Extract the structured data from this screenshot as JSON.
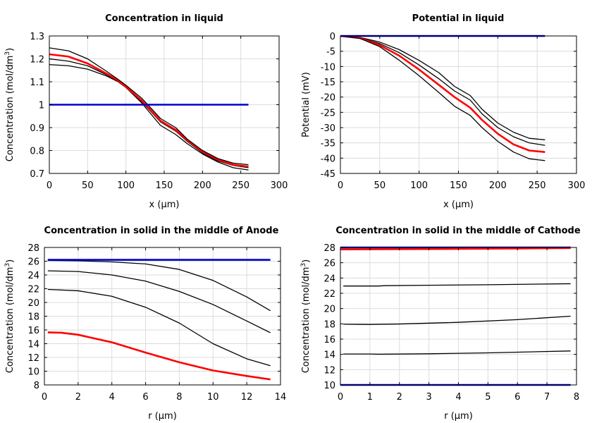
{
  "chart_data": [
    {
      "type": "line",
      "title": "Concentration in liquid",
      "xlabel": "x (µm)",
      "ylabel_main": "Concentration (mol/dm",
      "ylabel_sup": "3",
      "ylabel_tail": ")",
      "xlim": [
        0,
        300
      ],
      "ylim": [
        0.7,
        1.3
      ],
      "xticks": [
        0,
        50,
        100,
        150,
        200,
        250,
        300
      ],
      "yticks": [
        0.7,
        0.8,
        0.9,
        1,
        1.1,
        1.2,
        1.3
      ],
      "ytick_labels": [
        "0.7",
        "0.8",
        "0.9",
        "1",
        "1.1",
        "1.2",
        "1.3"
      ],
      "series": [
        {
          "color": "#000000",
          "width": 1.3,
          "points": [
            [
              0,
              1.175
            ],
            [
              25,
              1.17
            ],
            [
              50,
              1.155
            ],
            [
              75,
              1.125
            ],
            [
              90,
              1.1
            ],
            [
              100,
              1.075
            ],
            [
              120,
              1.01
            ],
            [
              130,
              0.97
            ],
            [
              145,
              0.91
            ],
            [
              165,
              0.87
            ],
            [
              180,
              0.83
            ],
            [
              200,
              0.785
            ],
            [
              220,
              0.75
            ],
            [
              240,
              0.725
            ],
            [
              260,
              0.715
            ]
          ]
        },
        {
          "color": "#000000",
          "width": 1.3,
          "points": [
            [
              0,
              1.2
            ],
            [
              25,
              1.19
            ],
            [
              50,
              1.17
            ],
            [
              75,
              1.13
            ],
            [
              90,
              1.1
            ],
            [
              100,
              1.075
            ],
            [
              120,
              1.015
            ],
            [
              130,
              0.98
            ],
            [
              145,
              0.925
            ],
            [
              165,
              0.885
            ],
            [
              180,
              0.84
            ],
            [
              200,
              0.79
            ],
            [
              220,
              0.755
            ],
            [
              240,
              0.735
            ],
            [
              260,
              0.725
            ]
          ]
        },
        {
          "color": "#ff0000",
          "width": 2.6,
          "points": [
            [
              0,
              1.22
            ],
            [
              25,
              1.21
            ],
            [
              50,
              1.18
            ],
            [
              75,
              1.135
            ],
            [
              90,
              1.105
            ],
            [
              100,
              1.078
            ],
            [
              120,
              1.02
            ],
            [
              130,
              0.985
            ],
            [
              145,
              0.93
            ],
            [
              165,
              0.89
            ],
            [
              180,
              0.845
            ],
            [
              200,
              0.795
            ],
            [
              220,
              0.76
            ],
            [
              240,
              0.738
            ],
            [
              260,
              0.73
            ]
          ]
        },
        {
          "color": "#000000",
          "width": 1.3,
          "points": [
            [
              0,
              1.248
            ],
            [
              25,
              1.235
            ],
            [
              50,
              1.2
            ],
            [
              75,
              1.145
            ],
            [
              90,
              1.11
            ],
            [
              100,
              1.085
            ],
            [
              120,
              1.03
            ],
            [
              130,
              0.995
            ],
            [
              145,
              0.94
            ],
            [
              165,
              0.9
            ],
            [
              180,
              0.85
            ],
            [
              200,
              0.8
            ],
            [
              220,
              0.765
            ],
            [
              240,
              0.745
            ],
            [
              260,
              0.738
            ]
          ]
        },
        {
          "color": "#0000cc",
          "width": 2.6,
          "points": [
            [
              0,
              1.0
            ],
            [
              260,
              1.0
            ]
          ]
        }
      ]
    },
    {
      "type": "line",
      "title": "Potential in liquid",
      "xlabel": "x (µm)",
      "ylabel_main": "Potential (mV)",
      "ylabel_sup": "",
      "ylabel_tail": "",
      "xlim": [
        0,
        300
      ],
      "ylim": [
        -45,
        0
      ],
      "xticks": [
        0,
        50,
        100,
        150,
        200,
        250,
        300
      ],
      "yticks": [
        0,
        -5,
        -10,
        -15,
        -20,
        -25,
        -30,
        -35,
        -40,
        -45
      ],
      "ytick_labels": [
        "0",
        "-5",
        "-10",
        "-15",
        "-20",
        "-25",
        "-30",
        "-35",
        "-40",
        "-45"
      ],
      "series": [
        {
          "color": "#000000",
          "width": 1.3,
          "points": [
            [
              0,
              0
            ],
            [
              25,
              -0.5
            ],
            [
              50,
              -2
            ],
            [
              75,
              -4.5
            ],
            [
              100,
              -8
            ],
            [
              125,
              -12
            ],
            [
              145,
              -16.5
            ],
            [
              165,
              -19.5
            ],
            [
              180,
              -24
            ],
            [
              200,
              -28.5
            ],
            [
              220,
              -31.5
            ],
            [
              240,
              -33.5
            ],
            [
              260,
              -34
            ]
          ]
        },
        {
          "color": "#000000",
          "width": 1.3,
          "points": [
            [
              0,
              0
            ],
            [
              25,
              -0.6
            ],
            [
              50,
              -2.5
            ],
            [
              75,
              -5.5
            ],
            [
              100,
              -9.5
            ],
            [
              125,
              -14
            ],
            [
              145,
              -18
            ],
            [
              165,
              -21
            ],
            [
              180,
              -25.5
            ],
            [
              200,
              -30
            ],
            [
              220,
              -33
            ],
            [
              240,
              -35
            ],
            [
              260,
              -35.8
            ]
          ]
        },
        {
          "color": "#ff0000",
          "width": 2.6,
          "points": [
            [
              0,
              0
            ],
            [
              25,
              -0.7
            ],
            [
              50,
              -3
            ],
            [
              75,
              -6.5
            ],
            [
              100,
              -11
            ],
            [
              125,
              -16
            ],
            [
              145,
              -20
            ],
            [
              165,
              -23.5
            ],
            [
              180,
              -27.5
            ],
            [
              200,
              -32
            ],
            [
              220,
              -35.5
            ],
            [
              240,
              -37.5
            ],
            [
              260,
              -38
            ]
          ]
        },
        {
          "color": "#000000",
          "width": 1.3,
          "points": [
            [
              0,
              0
            ],
            [
              25,
              -0.8
            ],
            [
              50,
              -3.5
            ],
            [
              75,
              -8
            ],
            [
              100,
              -13
            ],
            [
              125,
              -18.5
            ],
            [
              145,
              -23
            ],
            [
              165,
              -26
            ],
            [
              180,
              -30
            ],
            [
              200,
              -34.5
            ],
            [
              220,
              -38
            ],
            [
              240,
              -40.2
            ],
            [
              260,
              -40.8
            ]
          ]
        },
        {
          "color": "#0000cc",
          "width": 2.6,
          "points": [
            [
              0,
              0
            ],
            [
              260,
              0
            ]
          ]
        }
      ]
    },
    {
      "type": "line",
      "title": "Concentration in solid in the middle of Anode",
      "xlabel": "r (µm)",
      "ylabel_main": "Concentration (mol/dm",
      "ylabel_sup": "3",
      "ylabel_tail": ")",
      "xlim": [
        0,
        14
      ],
      "ylim": [
        8,
        28
      ],
      "xticks": [
        0,
        2,
        4,
        6,
        8,
        10,
        12,
        14
      ],
      "yticks": [
        8,
        10,
        12,
        14,
        16,
        18,
        20,
        22,
        24,
        26,
        28
      ],
      "ytick_labels": [
        "8",
        "10",
        "12",
        "14",
        "16",
        "18",
        "20",
        "22",
        "24",
        "26",
        "28"
      ],
      "series": [
        {
          "color": "#000000",
          "width": 1.3,
          "points": [
            [
              0.2,
              26.1
            ],
            [
              2,
              26.05
            ],
            [
              4,
              25.9
            ],
            [
              6,
              25.6
            ],
            [
              8,
              24.8
            ],
            [
              10,
              23.2
            ],
            [
              12,
              20.8
            ],
            [
              13.4,
              18.8
            ]
          ]
        },
        {
          "color": "#000000",
          "width": 1.3,
          "points": [
            [
              0.2,
              24.6
            ],
            [
              2,
              24.5
            ],
            [
              4,
              24
            ],
            [
              6,
              23.1
            ],
            [
              8,
              21.6
            ],
            [
              10,
              19.7
            ],
            [
              12,
              17.3
            ],
            [
              13.4,
              15.6
            ]
          ]
        },
        {
          "color": "#000000",
          "width": 1.3,
          "points": [
            [
              0.2,
              21.9
            ],
            [
              2,
              21.7
            ],
            [
              4,
              20.9
            ],
            [
              6,
              19.3
            ],
            [
              8,
              17
            ],
            [
              10,
              14
            ],
            [
              12,
              11.8
            ],
            [
              13.4,
              10.8
            ]
          ]
        },
        {
          "color": "#ff0000",
          "width": 2.6,
          "points": [
            [
              0.2,
              15.65
            ],
            [
              1,
              15.6
            ],
            [
              2,
              15.3
            ],
            [
              4,
              14.2
            ],
            [
              6,
              12.7
            ],
            [
              8,
              11.3
            ],
            [
              10,
              10.1
            ],
            [
              12,
              9.3
            ],
            [
              13.4,
              8.8
            ]
          ]
        },
        {
          "color": "#0000cc",
          "width": 2.6,
          "points": [
            [
              0.2,
              26.2
            ],
            [
              13.4,
              26.2
            ]
          ]
        }
      ]
    },
    {
      "type": "line",
      "title": "Concentration in solid in the middle of Cathode",
      "xlabel": "r (µm)",
      "ylabel_main": "Concentration (mol/dm",
      "ylabel_sup": "3",
      "ylabel_tail": ")",
      "xlim": [
        0,
        8
      ],
      "ylim": [
        10,
        28
      ],
      "xticks": [
        0,
        1,
        2,
        3,
        4,
        5,
        6,
        7,
        8
      ],
      "yticks": [
        10,
        12,
        14,
        16,
        18,
        20,
        22,
        24,
        26,
        28
      ],
      "ytick_labels": [
        "10",
        "12",
        "14",
        "16",
        "18",
        "20",
        "22",
        "24",
        "26",
        "28"
      ],
      "series": [
        {
          "color": "#0000cc",
          "width": 2.6,
          "points": [
            [
              0,
              28
            ],
            [
              7.8,
              28
            ]
          ]
        },
        {
          "color": "#ff0000",
          "width": 2.6,
          "points": [
            [
              0,
              27.75
            ],
            [
              2,
              27.78
            ],
            [
              4,
              27.82
            ],
            [
              6,
              27.87
            ],
            [
              7.8,
              27.92
            ]
          ]
        },
        {
          "color": "#000000",
          "width": 1.3,
          "points": [
            [
              0.1,
              22.95
            ],
            [
              1.3,
              22.95
            ],
            [
              1.5,
              23.0
            ],
            [
              3,
              23.05
            ],
            [
              5,
              23.12
            ],
            [
              7.8,
              23.25
            ]
          ]
        },
        {
          "color": "#000000",
          "width": 1.3,
          "points": [
            [
              0.1,
              17.95
            ],
            [
              1,
              17.92
            ],
            [
              2,
              17.98
            ],
            [
              4,
              18.2
            ],
            [
              6,
              18.55
            ],
            [
              7.8,
              19.0
            ]
          ]
        },
        {
          "color": "#000000",
          "width": 1.3,
          "points": [
            [
              0.1,
              14.05
            ],
            [
              1,
              14.05
            ],
            [
              1.3,
              14.02
            ],
            [
              3,
              14.08
            ],
            [
              5,
              14.2
            ],
            [
              7.8,
              14.45
            ]
          ]
        },
        {
          "color": "#0000cc",
          "width": 2.6,
          "points": [
            [
              0,
              10
            ],
            [
              7.8,
              10
            ]
          ]
        }
      ]
    }
  ]
}
